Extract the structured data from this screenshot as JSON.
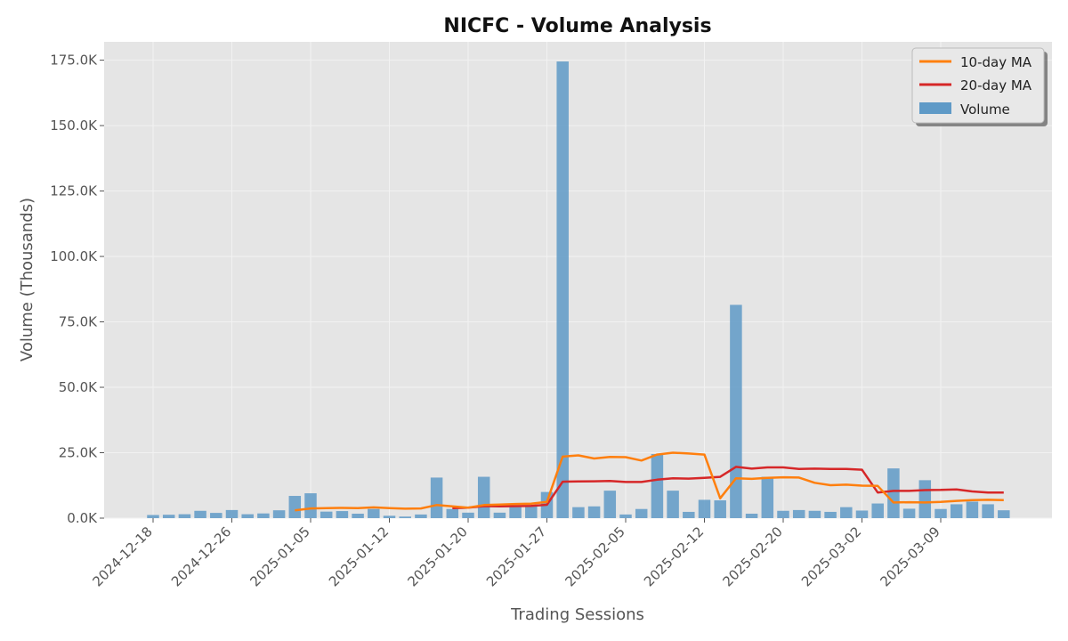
{
  "chart_data": {
    "type": "bar",
    "title": "NICFC - Volume Analysis",
    "xlabel": "Trading Sessions",
    "ylabel": "Volume (Thousands)",
    "ylim": [
      0,
      182000
    ],
    "y_ticks": [
      0,
      25000,
      50000,
      75000,
      100000,
      125000,
      150000,
      175000
    ],
    "y_tick_labels": [
      "0.0K",
      "25.0K",
      "50.0K",
      "75.0K",
      "100.0K",
      "125.0K",
      "150.0K",
      "175.0K"
    ],
    "x_tick_labels": [
      {
        "label": "2024-12-18",
        "index": 0
      },
      {
        "label": "2024-12-26",
        "index": 5
      },
      {
        "label": "2025-01-05",
        "index": 10
      },
      {
        "label": "2025-01-12",
        "index": 15
      },
      {
        "label": "2025-01-20",
        "index": 20
      },
      {
        "label": "2025-01-27",
        "index": 25
      },
      {
        "label": "2025-02-05",
        "index": 30
      },
      {
        "label": "2025-02-12",
        "index": 35
      },
      {
        "label": "2025-02-20",
        "index": 40
      },
      {
        "label": "2025-03-02",
        "index": 45
      },
      {
        "label": "2025-03-09",
        "index": 50
      }
    ],
    "grid": true,
    "legend_position": "top-right",
    "colors": {
      "volume": "#5f9ac7",
      "ma10": "#ff7f0e",
      "ma20": "#d62728",
      "plot_bg": "#e5e5e5"
    },
    "series": [
      {
        "name": "Volume",
        "type": "bar",
        "values": [
          1200,
          1300,
          1500,
          2800,
          2000,
          3100,
          1500,
          1800,
          3000,
          8500,
          9500,
          2500,
          2700,
          1700,
          3500,
          900,
          600,
          1400,
          15500,
          3500,
          2100,
          15800,
          2100,
          4800,
          4900,
          10000,
          174500,
          4200,
          4500,
          10500,
          1400,
          3500,
          24500,
          10500,
          2400,
          7000,
          6800,
          81500,
          1700,
          15800,
          2800,
          3100,
          2800,
          2400,
          4200,
          2900,
          5600,
          19000,
          3600,
          14500,
          3500,
          5300,
          6300,
          5300,
          3000
        ]
      },
      {
        "name": "10-day MA",
        "type": "line",
        "start_index": 9,
        "values": [
          3000,
          3700,
          3800,
          3900,
          3800,
          4100,
          3800,
          3600,
          3700,
          5000,
          4500,
          4000,
          5000,
          5200,
          5400,
          5500,
          6200,
          23500,
          24000,
          22800,
          23400,
          23300,
          22000,
          24300,
          25000,
          24700,
          24300,
          7600,
          15200,
          15000,
          15400,
          15600,
          15500,
          13500,
          12600,
          12800,
          12400,
          12300,
          6000,
          6100,
          6000,
          6200,
          6600,
          6900,
          7000,
          6900
        ]
      },
      {
        "name": "20-day MA",
        "type": "line",
        "start_index": 19,
        "values": [
          3800,
          4000,
          4600,
          4500,
          4600,
          4700,
          5100,
          13900,
          14000,
          14100,
          14200,
          13800,
          13800,
          14700,
          15200,
          15100,
          15400,
          15800,
          19600,
          18900,
          19400,
          19400,
          18800,
          18900,
          18800,
          18800,
          18500,
          9800,
          10400,
          10400,
          10700,
          10800,
          11000,
          10200,
          9800,
          9800
        ]
      }
    ]
  }
}
